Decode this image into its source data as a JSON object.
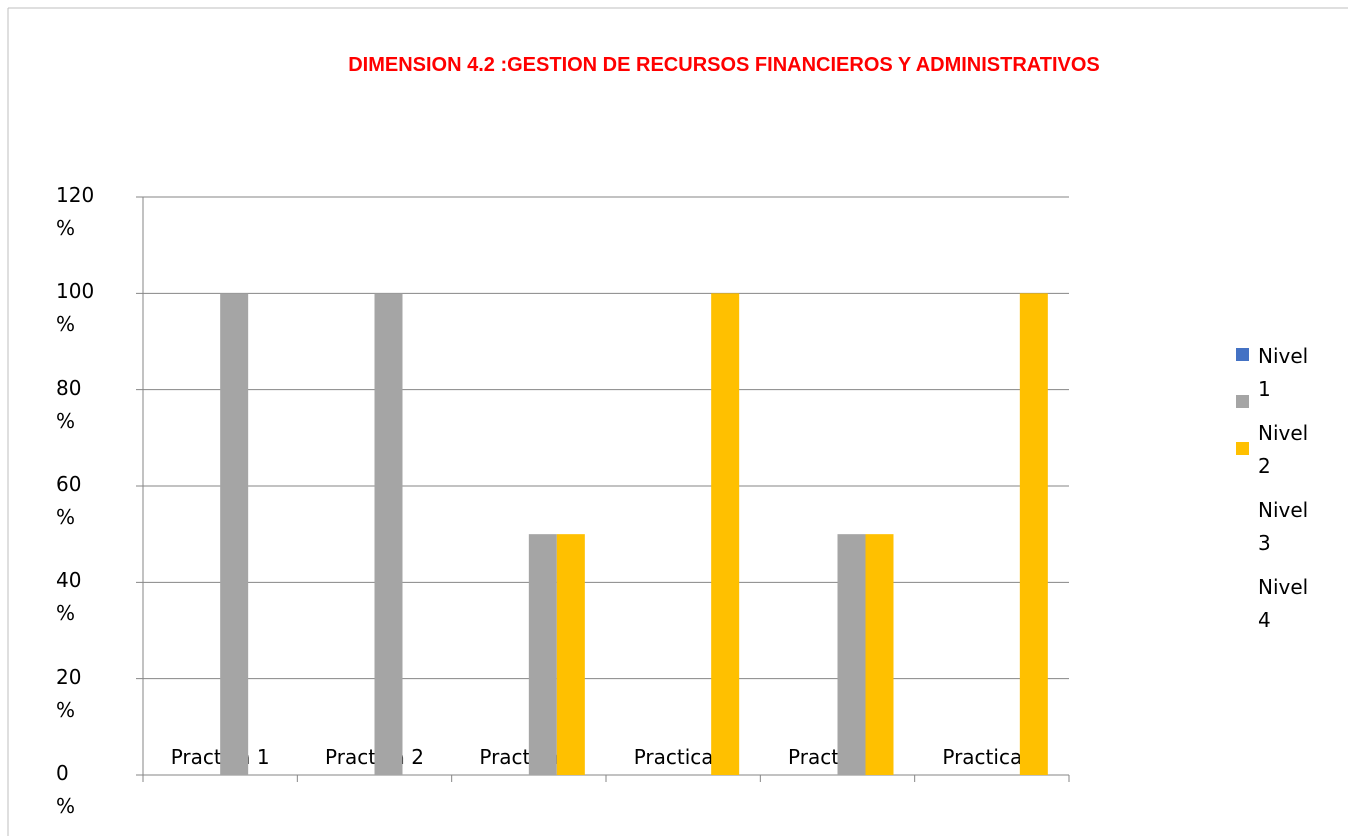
{
  "chart_data": {
    "type": "bar",
    "title": "DIMENSION 4.2 :GESTION DE RECURSOS FINANCIEROS Y ADMINISTRATIVOS",
    "categories": [
      "Practica 1",
      "Practica 2",
      "Practica 3",
      "Practica 4",
      "Practica 5",
      "Practica 6"
    ],
    "series": [
      {
        "name": "Nivel 1",
        "color": "#4472c4",
        "values": [
          0,
          0,
          0,
          0,
          0,
          0
        ]
      },
      {
        "name": "Nivel 2",
        "color": "#a5a5a5",
        "values": [
          100,
          100,
          50,
          0,
          50,
          0
        ]
      },
      {
        "name": "Nivel 3",
        "color": "#ffc000",
        "values": [
          0,
          0,
          50,
          100,
          50,
          100
        ]
      },
      {
        "name": "Nivel 4",
        "color": "#ffffff",
        "values": [
          0,
          0,
          0,
          0,
          0,
          0
        ]
      }
    ],
    "ylim": [
      0,
      120
    ],
    "yticks": [
      {
        "value": 0,
        "label": "0 %"
      },
      {
        "value": 20,
        "label": "20 %"
      },
      {
        "value": 40,
        "label": "40 %"
      },
      {
        "value": 60,
        "label": "60 %"
      },
      {
        "value": 80,
        "label": "80 %"
      },
      {
        "value": 100,
        "label": "100 %"
      },
      {
        "value": 120,
        "label": "120 %"
      }
    ],
    "grid": true,
    "legend": "right"
  }
}
